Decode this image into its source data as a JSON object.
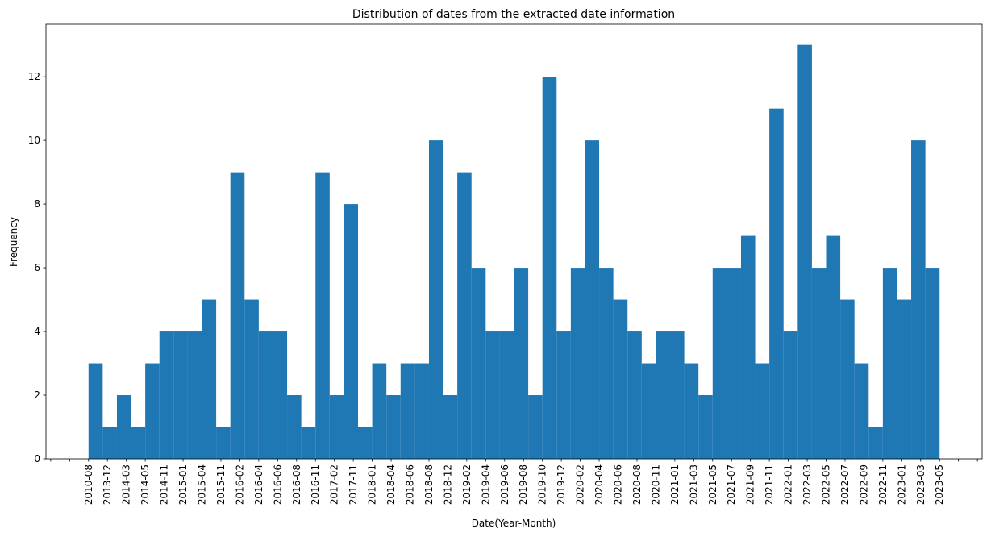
{
  "chart_data": {
    "type": "histogram",
    "title": "Distribution of dates from the extracted date information",
    "xlabel": "Date(Year-Month)",
    "ylabel": "Frequency",
    "color": "#1f77b4",
    "bins": [
      0,
      0.75,
      1.5,
      2.25,
      3,
      3.75,
      4.5,
      5.25,
      6,
      6.75,
      7.5,
      8.25,
      9,
      9.75,
      10.5,
      11.25,
      12,
      12.75,
      13.5,
      14.25,
      15,
      15.75,
      16.5,
      17.25,
      18,
      18.75,
      19.5,
      20.25,
      21,
      21.75,
      22.5,
      23.25,
      24,
      24.75,
      25.5,
      26.25,
      27,
      27.75,
      28.5,
      29.25,
      30,
      30.75,
      31.5,
      32.25,
      33,
      33.75,
      34.5,
      35.25,
      36,
      36.75,
      37.5,
      38.25,
      39,
      39.75,
      40.5,
      41.25,
      42,
      42.75,
      43.5,
      44.25,
      45
    ],
    "values": [
      3,
      1,
      2,
      1,
      3,
      4,
      4,
      4,
      5,
      1,
      9,
      5,
      4,
      4,
      2,
      1,
      9,
      2,
      8,
      1,
      3,
      2,
      3,
      3,
      10,
      2,
      9,
      6,
      4,
      4,
      6,
      2,
      12,
      4,
      6,
      10,
      6,
      5,
      4,
      3,
      4,
      4,
      3,
      2,
      6,
      6,
      7,
      3,
      11,
      4,
      13,
      6,
      7,
      5,
      3,
      1,
      6,
      5,
      10,
      6
    ],
    "xlim": [
      -2.25,
      47.25
    ],
    "ylim": [
      0,
      13.65
    ],
    "yticks": [
      0,
      2,
      4,
      6,
      8,
      10,
      12
    ],
    "xticks": [
      {
        "value": 0,
        "label": "2010-08"
      },
      {
        "value": 1,
        "label": "2013-12"
      },
      {
        "value": 2,
        "label": "2014-03"
      },
      {
        "value": 3,
        "label": "2014-05"
      },
      {
        "value": 4,
        "label": "2014-11"
      },
      {
        "value": 5,
        "label": "2015-01"
      },
      {
        "value": 6,
        "label": "2015-04"
      },
      {
        "value": 7,
        "label": "2015-11"
      },
      {
        "value": 8,
        "label": "2016-02"
      },
      {
        "value": 9,
        "label": "2016-04"
      },
      {
        "value": 10,
        "label": "2016-06"
      },
      {
        "value": 11,
        "label": "2016-08"
      },
      {
        "value": 12,
        "label": "2016-11"
      },
      {
        "value": 13,
        "label": "2017-02"
      },
      {
        "value": 14,
        "label": "2017-11"
      },
      {
        "value": 15,
        "label": "2018-01"
      },
      {
        "value": 16,
        "label": "2018-04"
      },
      {
        "value": 17,
        "label": "2018-06"
      },
      {
        "value": 18,
        "label": "2018-08"
      },
      {
        "value": 19,
        "label": "2018-12"
      },
      {
        "value": 20,
        "label": "2019-02"
      },
      {
        "value": 21,
        "label": "2019-04"
      },
      {
        "value": 22,
        "label": "2019-06"
      },
      {
        "value": 23,
        "label": "2019-08"
      },
      {
        "value": 24,
        "label": "2019-10"
      },
      {
        "value": 25,
        "label": "2019-12"
      },
      {
        "value": 26,
        "label": "2020-02"
      },
      {
        "value": 27,
        "label": "2020-04"
      },
      {
        "value": 28,
        "label": "2020-06"
      },
      {
        "value": 29,
        "label": "2020-08"
      },
      {
        "value": 30,
        "label": "2020-11"
      },
      {
        "value": 31,
        "label": "2021-01"
      },
      {
        "value": 32,
        "label": "2021-03"
      },
      {
        "value": 33,
        "label": "2021-05"
      },
      {
        "value": 34,
        "label": "2021-07"
      },
      {
        "value": 35,
        "label": "2021-09"
      },
      {
        "value": 36,
        "label": "2021-11"
      },
      {
        "value": 37,
        "label": "2022-01"
      },
      {
        "value": 38,
        "label": "2022-03"
      },
      {
        "value": 39,
        "label": "2022-05"
      },
      {
        "value": 40,
        "label": "2022-07"
      },
      {
        "value": 41,
        "label": "2022-09"
      },
      {
        "value": 42,
        "label": "2022-11"
      },
      {
        "value": 43,
        "label": "2023-01"
      },
      {
        "value": 44,
        "label": "2023-03"
      },
      {
        "value": 45,
        "label": "2023-05"
      }
    ],
    "minor_xticks": [
      -2,
      -1,
      46,
      47
    ]
  }
}
